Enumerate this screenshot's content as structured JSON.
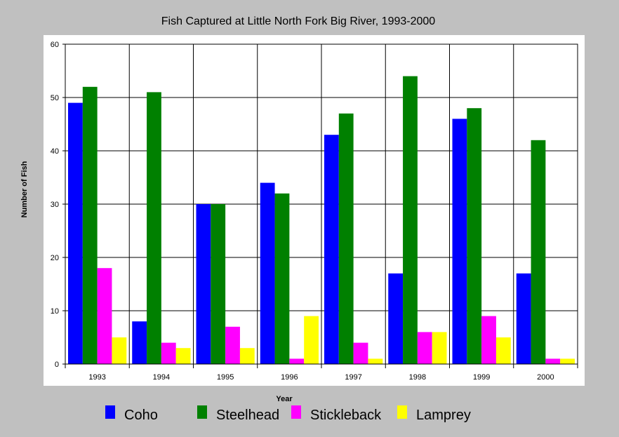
{
  "chart_data": {
    "type": "bar",
    "title": "Fish Captured at Little North Fork Big River, 1993-2000",
    "xlabel": "Year",
    "ylabel": "Number of Fish",
    "ylim": [
      0,
      60
    ],
    "yticks": [
      "0",
      "10",
      "20",
      "30",
      "40",
      "50",
      "60"
    ],
    "grid": true,
    "legend_position": "bottom",
    "categories": [
      "1993",
      "1994",
      "1995",
      "1996",
      "1997",
      "1998",
      "1999",
      "2000"
    ],
    "series": [
      {
        "name": "Coho",
        "color": "#0000ff",
        "values": [
          49,
          8,
          30,
          34,
          43,
          17,
          46,
          17
        ]
      },
      {
        "name": "Steelhead",
        "color": "#008000",
        "values": [
          52,
          51,
          30,
          32,
          47,
          54,
          48,
          42
        ]
      },
      {
        "name": "Stickleback",
        "color": "#ff00ff",
        "values": [
          18,
          4,
          7,
          1,
          4,
          6,
          9,
          1
        ]
      },
      {
        "name": "Lamprey",
        "color": "#ffff00",
        "values": [
          5,
          3,
          3,
          9,
          1,
          6,
          5,
          1
        ]
      }
    ]
  },
  "colors": {
    "background": "#c0c0c0",
    "panel": "#ffffff",
    "grid": "#000000"
  }
}
